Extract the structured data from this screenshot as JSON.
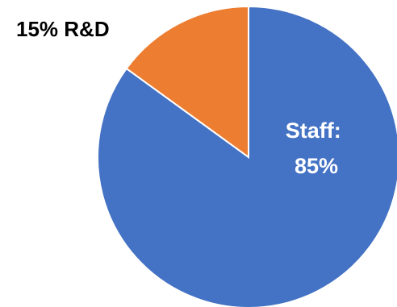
{
  "chart_data": {
    "type": "pie",
    "slices": [
      {
        "label_lines": [
          "Staff:",
          "85%"
        ],
        "value": 85,
        "color": "#4472C4",
        "label_placement": "inside"
      },
      {
        "label_lines": [
          "15% R&D"
        ],
        "value": 15,
        "color": "#ED7D31",
        "label_placement": "outside-left"
      }
    ],
    "start_angle_deg": 0,
    "direction": "clockwise",
    "slice_border_color": "#ffffff"
  }
}
